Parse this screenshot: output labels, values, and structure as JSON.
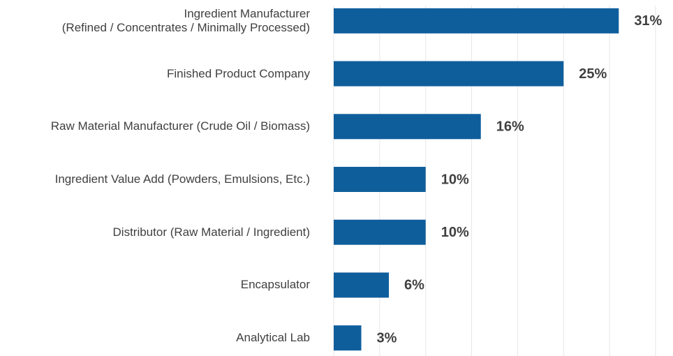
{
  "chart_data": {
    "type": "bar",
    "orientation": "horizontal",
    "categories": [
      "Ingredient Manufacturer\n(Refined / Concentrates / Minimally Processed)",
      "Finished Product Company",
      "Raw Material Manufacturer (Crude Oil / Biomass)",
      "Ingredient Value Add (Powders, Emulsions, Etc.)",
      "Distributor (Raw Material / Ingredient)",
      "Encapsulator",
      "Analytical Lab"
    ],
    "values": [
      31,
      25,
      16,
      10,
      10,
      6,
      3
    ],
    "value_labels": [
      "31%",
      "25%",
      "16%",
      "10%",
      "10%",
      "6%",
      "3%"
    ],
    "color": "#0f5e9c",
    "xlim": [
      0,
      35
    ],
    "xticks": [
      0,
      5,
      10,
      15,
      20,
      25,
      30,
      35
    ],
    "grid": true
  }
}
